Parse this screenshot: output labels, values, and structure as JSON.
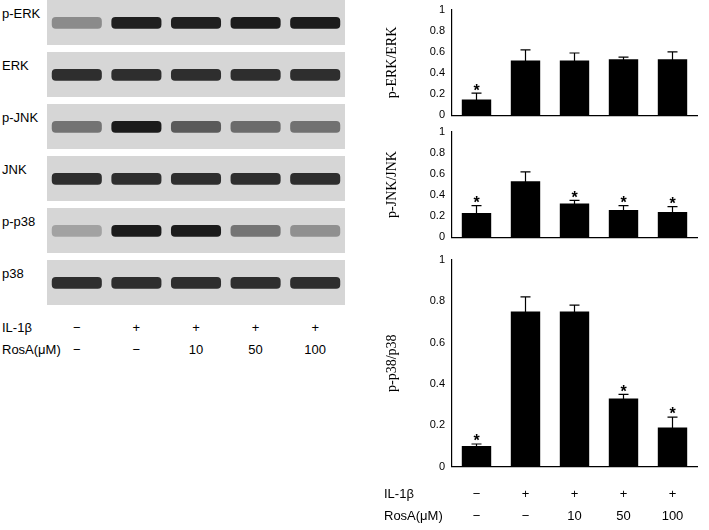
{
  "blot": {
    "rows": [
      "p-ERK",
      "ERK",
      "p-JNK",
      "JNK",
      "p-p38",
      "p38"
    ]
  },
  "conditions": [
    {
      "label": "IL-1β",
      "values": [
        "−",
        "+",
        "+",
        "+",
        "+"
      ]
    },
    {
      "label": "RosA(μM)",
      "values": [
        "−",
        "−",
        "10",
        "50",
        "100"
      ]
    }
  ],
  "chart_data": [
    {
      "type": "bar",
      "y_label": "p-ERK/ERK",
      "categories": [
        null,
        null,
        null,
        null,
        null
      ],
      "values": [
        0.15,
        0.52,
        0.52,
        0.53,
        0.53
      ],
      "errors": [
        0.06,
        0.1,
        0.07,
        0.02,
        0.07
      ],
      "annotations": [
        {
          "bar": 0,
          "text": "*"
        }
      ],
      "color": "#000000",
      "ylim": [
        0,
        1
      ],
      "yticks": [
        0,
        0.2,
        0.4,
        0.6,
        0.8,
        1
      ],
      "grid": false
    },
    {
      "type": "bar",
      "y_label": "p-JNK/JNK",
      "categories": [
        null,
        null,
        null,
        null,
        null
      ],
      "values": [
        0.23,
        0.53,
        0.32,
        0.26,
        0.24
      ],
      "errors": [
        0.07,
        0.09,
        0.03,
        0.04,
        0.05
      ],
      "annotations": [
        {
          "bar": 0,
          "text": "*"
        },
        {
          "bar": 2,
          "text": "*"
        },
        {
          "bar": 3,
          "text": "*"
        },
        {
          "bar": 4,
          "text": "*"
        }
      ],
      "color": "#000000",
      "ylim": [
        0,
        1
      ],
      "yticks": [
        0,
        0.2,
        0.4,
        0.6,
        0.8,
        1
      ],
      "grid": false
    },
    {
      "type": "bar",
      "y_label": "p-p38/p38",
      "categories": [
        null,
        null,
        null,
        null,
        null
      ],
      "values": [
        0.1,
        0.75,
        0.75,
        0.33,
        0.19
      ],
      "errors": [
        0.01,
        0.07,
        0.03,
        0.02,
        0.05
      ],
      "annotations": [
        {
          "bar": 0,
          "text": "*"
        },
        {
          "bar": 3,
          "text": "*"
        },
        {
          "bar": 4,
          "text": "*"
        }
      ],
      "color": "#000000",
      "ylim": [
        0,
        1
      ],
      "yticks": [
        0,
        0.2,
        0.4,
        0.6,
        0.8,
        1
      ],
      "grid": false
    }
  ]
}
